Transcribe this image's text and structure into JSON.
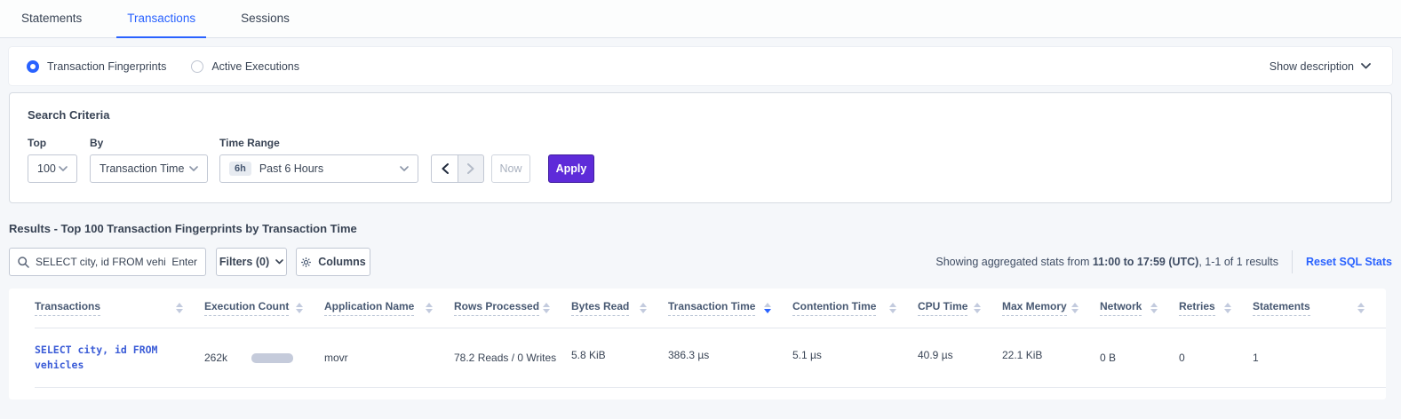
{
  "tabs": {
    "items": [
      {
        "label": "Statements",
        "active": false
      },
      {
        "label": "Transactions",
        "active": true
      },
      {
        "label": "Sessions",
        "active": false
      }
    ]
  },
  "view_toggle": {
    "options": [
      {
        "label": "Transaction Fingerprints",
        "selected": true
      },
      {
        "label": "Active Executions",
        "selected": false
      }
    ],
    "show_description_label": "Show description"
  },
  "search_criteria": {
    "title": "Search Criteria",
    "top": {
      "label": "Top",
      "value": "100"
    },
    "by": {
      "label": "By",
      "value": "Transaction Time"
    },
    "time_range": {
      "label": "Time Range",
      "badge": "6h",
      "value": "Past 6 Hours"
    },
    "now_label": "Now",
    "apply_label": "Apply"
  },
  "results": {
    "title": "Results - Top 100 Transaction Fingerprints by Transaction Time",
    "search": {
      "value": "SELECT city, id FROM vehicles W",
      "enter_label": "Enter"
    },
    "filters_label": "Filters (0)",
    "columns_label": "Columns",
    "stats": {
      "prefix": "Showing aggregated stats from ",
      "range": "11:00 to 17:59 (UTC)",
      "suffix": ", 1-1 of 1 results"
    },
    "reset_label": "Reset SQL Stats"
  },
  "table": {
    "columns": [
      {
        "label": "Transactions",
        "sort": "none"
      },
      {
        "label": "Execution Count",
        "sort": "none"
      },
      {
        "label": "Application Name",
        "sort": "none"
      },
      {
        "label": "Rows Processed",
        "sort": "none"
      },
      {
        "label": "Bytes Read",
        "sort": "none"
      },
      {
        "label": "Transaction Time",
        "sort": "desc"
      },
      {
        "label": "Contention Time",
        "sort": "none"
      },
      {
        "label": "CPU Time",
        "sort": "none"
      },
      {
        "label": "Max Memory",
        "sort": "none"
      },
      {
        "label": "Network",
        "sort": "none"
      },
      {
        "label": "Retries",
        "sort": "none"
      },
      {
        "label": "Statements",
        "sort": "none"
      }
    ],
    "row": {
      "transaction_lines": {
        "0": "SELECT city, id FROM",
        "1": "vehicles"
      },
      "execution_count": {
        "value": "262k",
        "bar_pct": 100
      },
      "application_name": "movr",
      "rows_processed": "78.2 Reads / 0 Writes",
      "bytes_read": {
        "value": "5.8 KiB",
        "bar_pct": 60,
        "line": [
          25,
          100
        ]
      },
      "transaction_time": {
        "value": "386.3 µs",
        "bar_pct": 34,
        "line": [
          5,
          100
        ]
      },
      "contention_time": {
        "value": "5.1 µs",
        "bar_pct": 3,
        "line": [
          0,
          100
        ]
      },
      "cpu_time": {
        "value": "40.9 µs",
        "bar_pct": 62,
        "line": [
          30,
          100
        ]
      },
      "max_memory": {
        "value": "22.1 KiB",
        "bar_pct": 76,
        "line": [
          60,
          100
        ]
      },
      "network": "0 B",
      "retries": "0",
      "statements": "1"
    }
  },
  "icons": {
    "search": "magnifier",
    "gear": "gear",
    "chevron_down": "chevron-down",
    "chevron_left": "chevron-left",
    "chevron_right": "chevron-right"
  },
  "colors": {
    "accent_blue": "#2962ff",
    "apply_purple": "#5e2bd9",
    "bar_gray": "#c5cbdb",
    "page_bg": "#f5f7fa"
  }
}
